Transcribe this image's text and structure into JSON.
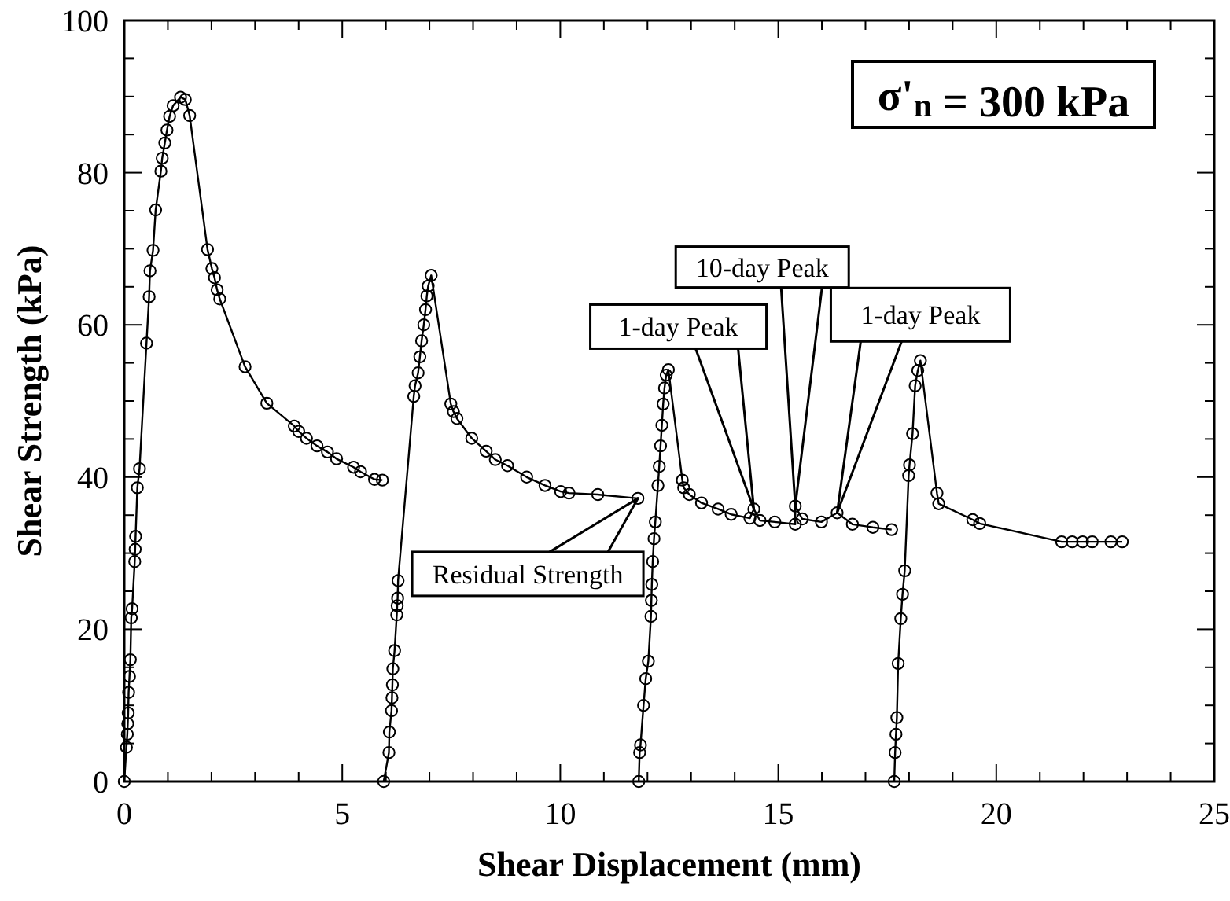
{
  "chart_data": {
    "type": "line",
    "xlabel": "Shear Displacement (mm)",
    "ylabel": "Shear Strength (kPa)",
    "marker": "circle",
    "line_style": "solid",
    "grid": false,
    "xlim": [
      0,
      25
    ],
    "ylim": [
      0,
      100
    ],
    "xticks": [
      0,
      {
        "value": 1,
        "label": null
      },
      {
        "value": 2,
        "label": null
      },
      {
        "value": 3,
        "label": null
      },
      {
        "value": 4,
        "label": null
      },
      5,
      {
        "value": 6,
        "label": null
      },
      {
        "value": 7,
        "label": null
      },
      {
        "value": 8,
        "label": null
      },
      {
        "value": 9,
        "label": null
      },
      10,
      {
        "value": 11,
        "label": null
      },
      {
        "value": 12,
        "label": null
      },
      {
        "value": 13,
        "label": null
      },
      {
        "value": 14,
        "label": null
      },
      15,
      {
        "value": 16,
        "label": null
      },
      {
        "value": 17,
        "label": null
      },
      {
        "value": 18,
        "label": null
      },
      {
        "value": 19,
        "label": null
      },
      20,
      {
        "value": 21,
        "label": null
      },
      {
        "value": 22,
        "label": null
      },
      {
        "value": 23,
        "label": null
      },
      {
        "value": 24,
        "label": null
      },
      25
    ],
    "yticks": [
      0,
      {
        "value": 5,
        "label": null
      },
      {
        "value": 10,
        "label": null
      },
      {
        "value": 15,
        "label": null
      },
      20,
      {
        "value": 25,
        "label": null
      },
      {
        "value": 30,
        "label": null
      },
      {
        "value": 35,
        "label": null
      },
      40,
      {
        "value": 45,
        "label": null
      },
      {
        "value": 50,
        "label": null
      },
      {
        "value": 55,
        "label": null
      },
      60,
      {
        "value": 65,
        "label": null
      },
      {
        "value": 70,
        "label": null
      },
      {
        "value": 75,
        "label": null
      },
      80,
      {
        "value": 85,
        "label": null
      },
      {
        "value": 90,
        "label": null
      },
      {
        "value": 95,
        "label": null
      },
      100
    ],
    "series": [
      {
        "color": "#000000",
        "x": [
          0,
          0.05,
          0.07,
          0.08,
          0.09,
          0.1,
          0.12,
          0.14,
          0.16,
          0.18,
          0.24,
          0.25,
          0.26,
          0.3,
          0.35,
          0.51,
          0.57,
          0.59,
          0.66,
          0.72,
          0.84,
          0.87,
          0.93,
          0.98,
          1.04,
          1.12,
          1.29,
          1.4,
          1.5,
          1.91,
          2.01,
          2.07,
          2.13,
          2.19,
          2.77,
          3.27,
          3.9,
          4.0,
          4.18,
          4.42,
          4.66,
          4.87,
          5.26,
          5.42,
          5.74,
          5.92
        ],
        "values": [
          0,
          4.5,
          6.2,
          7.6,
          9.0,
          11.7,
          13.8,
          16.0,
          21.5,
          22.7,
          28.9,
          30.5,
          32.2,
          38.6,
          41.1,
          57.6,
          63.7,
          67.1,
          69.8,
          75.1,
          80.2,
          81.9,
          83.9,
          85.6,
          87.4,
          88.8,
          89.9,
          89.6,
          87.5,
          69.9,
          67.4,
          66.2,
          64.6,
          63.4,
          54.5,
          49.7,
          46.7,
          46.0,
          45.1,
          44.1,
          43.3,
          42.4,
          41.3,
          40.7,
          39.7,
          39.6
        ]
      },
      {
        "color": "#000000",
        "x": [
          5.95,
          6.07,
          6.08,
          6.13,
          6.14,
          6.15,
          6.16,
          6.2,
          6.25,
          6.26,
          6.27,
          6.28,
          6.64,
          6.67,
          6.74,
          6.78,
          6.82,
          6.87,
          6.91,
          6.94,
          6.97,
          7.04,
          7.49,
          7.55,
          7.63,
          7.97,
          8.3,
          8.51,
          8.79,
          9.23,
          9.65,
          10.01,
          10.2,
          10.86,
          11.78
        ],
        "values": [
          0,
          3.8,
          6.5,
          9.3,
          11.0,
          12.7,
          14.8,
          17.2,
          21.9,
          23.1,
          24.1,
          26.4,
          50.6,
          52.0,
          53.7,
          55.8,
          57.9,
          60.0,
          62.0,
          63.8,
          65.1,
          66.5,
          49.6,
          48.6,
          47.7,
          45.1,
          43.4,
          42.3,
          41.5,
          40.0,
          38.9,
          38.1,
          37.9,
          37.7,
          37.2
        ]
      },
      {
        "color": "#000000",
        "x": [
          11.8,
          11.82,
          11.84,
          11.91,
          11.96,
          12.02,
          12.08,
          12.09,
          12.1,
          12.12,
          12.15,
          12.18,
          12.24,
          12.27,
          12.3,
          12.33,
          12.36,
          12.39,
          12.43,
          12.48,
          12.8,
          12.83,
          12.96,
          13.24,
          13.62,
          13.92,
          14.35,
          14.44,
          14.58,
          14.92,
          15.39,
          15.39,
          15.55,
          15.99,
          16.35,
          16.7,
          17.17,
          17.6
        ],
        "values": [
          0,
          3.8,
          4.8,
          10.0,
          13.5,
          15.8,
          21.7,
          23.8,
          25.9,
          28.9,
          31.9,
          34.1,
          38.9,
          41.4,
          44.1,
          46.8,
          49.6,
          51.7,
          53.4,
          54.1,
          39.6,
          38.6,
          37.7,
          36.6,
          35.8,
          35.1,
          34.6,
          35.8,
          34.3,
          34.1,
          33.8,
          36.2,
          34.5,
          34.1,
          35.3,
          33.8,
          33.4,
          33.1
        ]
      },
      {
        "color": "#000000",
        "x": [
          17.66,
          17.68,
          17.7,
          17.72,
          17.75,
          17.81,
          17.85,
          17.9,
          17.99,
          18.01,
          18.08,
          18.14,
          18.2,
          18.26,
          18.64,
          18.68,
          19.46,
          19.62,
          21.5,
          21.74,
          21.98,
          22.2,
          22.63,
          22.89
        ],
        "values": [
          0,
          3.8,
          6.2,
          8.4,
          15.5,
          21.4,
          24.6,
          27.7,
          40.2,
          41.6,
          45.7,
          52.0,
          54.0,
          55.3,
          37.9,
          36.5,
          34.4,
          33.9,
          31.5,
          31.5,
          31.5,
          31.5,
          31.5,
          31.5
        ]
      }
    ],
    "annotations": [
      "σ'$_{n}$ = 300 kPa",
      {
        "text": "Residual Strength",
        "x": 11.78,
        "y": 37.2
      },
      {
        "text": "1-day Peak",
        "x": 14.44,
        "y": 35.8
      },
      {
        "text": "10-day Peak",
        "x": 15.39,
        "y": 36.2
      },
      {
        "text": "1-day Peak",
        "x": 16.35,
        "y": 35.3
      }
    ]
  }
}
